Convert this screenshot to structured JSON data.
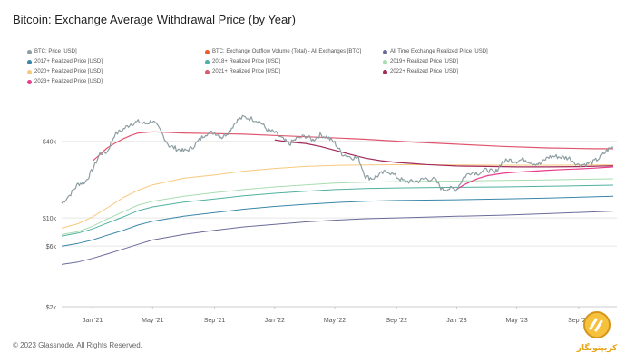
{
  "page": {
    "footer": "© 2023 Glassnode. All Rights Reserved."
  },
  "watermark": {
    "text": "کریپتونگار",
    "color": "#e8a317"
  },
  "chart_data": {
    "type": "line",
    "title": "Bitcoin: Exchange Average Withdrawal Price (by Year)",
    "y_scale": "log",
    "ylim": [
      2000,
      100000
    ],
    "xlim": [
      2020.83,
      2023.88
    ],
    "y_ticks": [
      {
        "value": 2000,
        "label": "$2k"
      },
      {
        "value": 6000,
        "label": "$6k"
      },
      {
        "value": 10000,
        "label": "$10k"
      },
      {
        "value": 40000,
        "label": "$40k"
      }
    ],
    "x_ticks": [
      {
        "value": 2021.0,
        "label": "Jan '21"
      },
      {
        "value": 2021.33,
        "label": "May '21"
      },
      {
        "value": 2021.67,
        "label": "Sep '21"
      },
      {
        "value": 2022.0,
        "label": "Jan '22"
      },
      {
        "value": 2022.33,
        "label": "May '22"
      },
      {
        "value": 2022.67,
        "label": "Sep '22"
      },
      {
        "value": 2023.0,
        "label": "Jan '23"
      },
      {
        "value": 2023.33,
        "label": "May '23"
      },
      {
        "value": 2023.67,
        "label": "Sep '23"
      }
    ],
    "legend": [
      {
        "label": "BTC: Price [USD]",
        "color": "#8c9ea2"
      },
      {
        "label": "BTC: Exchange Outflow Volume (Total) - All Exchanges [BTC]",
        "color": "#f05a28"
      },
      {
        "label": "All Time Exchange Realized Price [USD]",
        "color": "#6b6b9a"
      },
      {
        "label": "2017+ Realized Price [USD]",
        "color": "#3a86a8"
      },
      {
        "label": "2018+ Realized Price [USD]",
        "color": "#4fb0a0"
      },
      {
        "label": "2019+ Realized Price [USD]",
        "color": "#a8dcb0"
      },
      {
        "label": "2020+ Realized Price [USD]",
        "color": "#f7c97e"
      },
      {
        "label": "2021+ Realized Price [USD]",
        "color": "#e0566e"
      },
      {
        "label": "2022+ Realized Price [USD]",
        "color": "#a0285a"
      },
      {
        "label": "2023+ Realized Price [USD]",
        "color": "#e83e8c"
      }
    ],
    "series": [
      {
        "name": "BTC: Price [USD]",
        "color": "#8c9ea2",
        "width": 1.2,
        "noisy": true,
        "x": [
          2020.83,
          2020.88,
          2020.92,
          2020.96,
          2021.0,
          2021.04,
          2021.08,
          2021.12,
          2021.17,
          2021.21,
          2021.25,
          2021.29,
          2021.33,
          2021.37,
          2021.42,
          2021.46,
          2021.5,
          2021.54,
          2021.58,
          2021.62,
          2021.67,
          2021.71,
          2021.75,
          2021.79,
          2021.83,
          2021.88,
          2021.92,
          2021.96,
          2022.0,
          2022.04,
          2022.08,
          2022.12,
          2022.17,
          2022.21,
          2022.25,
          2022.29,
          2022.33,
          2022.37,
          2022.42,
          2022.46,
          2022.5,
          2022.54,
          2022.58,
          2022.62,
          2022.67,
          2022.71,
          2022.75,
          2022.79,
          2022.83,
          2022.88,
          2022.92,
          2022.96,
          2023.0,
          2023.04,
          2023.08,
          2023.12,
          2023.17,
          2023.21,
          2023.25,
          2023.29,
          2023.33,
          2023.37,
          2023.42,
          2023.46,
          2023.5,
          2023.54,
          2023.58,
          2023.62,
          2023.67,
          2023.71,
          2023.75,
          2023.79,
          2023.83,
          2023.86
        ],
        "y": [
          13000,
          15500,
          18500,
          19200,
          24000,
          32000,
          33000,
          45000,
          50000,
          55000,
          57000,
          55000,
          58000,
          49000,
          37000,
          35000,
          33500,
          35000,
          40000,
          46000,
          47000,
          43000,
          48000,
          58000,
          62000,
          60000,
          57000,
          49000,
          47000,
          42000,
          38000,
          42000,
          44000,
          41000,
          45000,
          43000,
          39000,
          32000,
          30000,
          29500,
          21000,
          20500,
          22000,
          23500,
          21000,
          19500,
          19300,
          19500,
          20500,
          20000,
          16800,
          17000,
          16800,
          21000,
          23000,
          22500,
          24000,
          22500,
          27500,
          28500,
          28000,
          29000,
          27000,
          26500,
          30000,
          30500,
          30000,
          29500,
          26000,
          26500,
          27500,
          30000,
          34500,
          36000
        ]
      },
      {
        "name": "2021+ Realized Price [USD]",
        "color": "#e0566e",
        "width": 1.2,
        "x": [
          2021.0,
          2021.04,
          2021.08,
          2021.12,
          2021.17,
          2021.21,
          2021.25,
          2021.33,
          2021.5,
          2021.67,
          2021.83,
          2022.0,
          2022.25,
          2022.5,
          2022.75,
          2023.0,
          2023.25,
          2023.5,
          2023.75,
          2023.86
        ],
        "y": [
          28000,
          31500,
          35500,
          38500,
          42000,
          44500,
          46500,
          47500,
          46500,
          46000,
          45500,
          44500,
          43000,
          41500,
          39500,
          38000,
          36500,
          35500,
          35000,
          35000
        ]
      },
      {
        "name": "2022+ Realized Price [USD]",
        "color": "#a0285a",
        "width": 1.2,
        "x": [
          2022.0,
          2022.08,
          2022.17,
          2022.25,
          2022.33,
          2022.42,
          2022.5,
          2022.58,
          2022.67,
          2022.75,
          2022.83,
          2022.92,
          2023.0,
          2023.17,
          2023.33,
          2023.5,
          2023.67,
          2023.86
        ],
        "y": [
          41000,
          39500,
          38500,
          36500,
          34000,
          31500,
          29500,
          28200,
          27300,
          26800,
          26300,
          25900,
          25600,
          25400,
          25200,
          25200,
          25300,
          25700
        ]
      },
      {
        "name": "2023+ Realized Price [USD]",
        "color": "#e83e8c",
        "width": 1.2,
        "x": [
          2023.0,
          2023.04,
          2023.08,
          2023.12,
          2023.17,
          2023.25,
          2023.33,
          2023.42,
          2023.5,
          2023.58,
          2023.67,
          2023.75,
          2023.86
        ],
        "y": [
          16800,
          18200,
          19400,
          20500,
          21500,
          22400,
          22900,
          23300,
          23700,
          24000,
          24300,
          24600,
          25200
        ]
      },
      {
        "name": "2020+ Realized Price [USD]",
        "color": "#f7c97e",
        "width": 1.0,
        "x": [
          2020.83,
          2020.92,
          2021.0,
          2021.08,
          2021.17,
          2021.25,
          2021.33,
          2021.5,
          2021.67,
          2021.83,
          2022.0,
          2022.17,
          2022.33,
          2022.5,
          2022.67,
          2022.83,
          2023.0,
          2023.25,
          2023.5,
          2023.86
        ],
        "y": [
          8300,
          9000,
          10200,
          12000,
          14500,
          16500,
          18200,
          20500,
          21800,
          23300,
          24500,
          25400,
          25900,
          26100,
          26200,
          26200,
          26100,
          26000,
          26000,
          26100
        ]
      },
      {
        "name": "2019+ Realized Price [USD]",
        "color": "#a8dcb0",
        "width": 1.0,
        "x": [
          2020.83,
          2020.92,
          2021.0,
          2021.08,
          2021.17,
          2021.25,
          2021.33,
          2021.5,
          2021.67,
          2021.83,
          2022.0,
          2022.17,
          2022.33,
          2022.5,
          2022.67,
          2022.83,
          2023.0,
          2023.25,
          2023.5,
          2023.86
        ],
        "y": [
          7400,
          7800,
          8600,
          9800,
          11200,
          12600,
          13500,
          14800,
          15800,
          16700,
          17500,
          18200,
          18800,
          19100,
          19300,
          19400,
          19500,
          19700,
          19900,
          20300
        ]
      },
      {
        "name": "2018+ Realized Price [USD]",
        "color": "#4fb0a0",
        "width": 1.0,
        "x": [
          2020.83,
          2020.92,
          2021.0,
          2021.08,
          2021.17,
          2021.25,
          2021.33,
          2021.5,
          2021.67,
          2021.83,
          2022.0,
          2022.17,
          2022.33,
          2022.5,
          2022.67,
          2022.83,
          2023.0,
          2023.25,
          2023.5,
          2023.86
        ],
        "y": [
          7200,
          7600,
          8200,
          9100,
          10200,
          11400,
          12200,
          13300,
          14100,
          14900,
          15600,
          16200,
          16700,
          17000,
          17200,
          17300,
          17400,
          17500,
          17700,
          18100
        ]
      },
      {
        "name": "2017+ Realized Price [USD]",
        "color": "#3a86a8",
        "width": 1.0,
        "x": [
          2020.83,
          2020.92,
          2021.0,
          2021.08,
          2021.17,
          2021.25,
          2021.33,
          2021.5,
          2021.67,
          2021.83,
          2022.0,
          2022.17,
          2022.33,
          2022.5,
          2022.67,
          2022.83,
          2023.0,
          2023.25,
          2023.5,
          2023.86
        ],
        "y": [
          6000,
          6300,
          6700,
          7300,
          8000,
          8800,
          9400,
          10300,
          11000,
          11700,
          12300,
          12800,
          13200,
          13500,
          13700,
          13800,
          13900,
          14100,
          14300,
          14800
        ]
      },
      {
        "name": "All Time Exchange Realized Price [USD]",
        "color": "#6b6b9a",
        "width": 1.0,
        "x": [
          2020.83,
          2020.92,
          2021.0,
          2021.08,
          2021.17,
          2021.25,
          2021.33,
          2021.5,
          2021.67,
          2021.83,
          2022.0,
          2022.17,
          2022.33,
          2022.5,
          2022.67,
          2022.83,
          2023.0,
          2023.25,
          2023.5,
          2023.86
        ],
        "y": [
          4300,
          4500,
          4800,
          5200,
          5700,
          6200,
          6700,
          7400,
          8000,
          8500,
          8900,
          9300,
          9600,
          9850,
          10000,
          10150,
          10300,
          10500,
          10800,
          11300
        ]
      }
    ]
  }
}
